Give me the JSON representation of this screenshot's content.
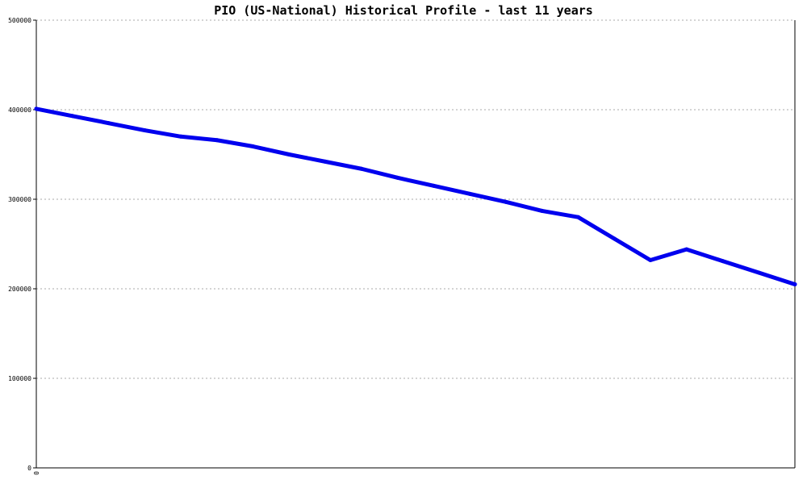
{
  "chart_data": {
    "type": "line",
    "title": "PIO (US-National) Historical Profile - last 11 years",
    "xlabel": "",
    "ylabel": "",
    "x_tick_labels": [
      "0"
    ],
    "ylim": [
      0,
      500000
    ],
    "y_ticks": [
      0,
      100000,
      200000,
      300000,
      400000,
      500000
    ],
    "y_tick_labels": [
      "0",
      "100000",
      "200000",
      "300000",
      "400000",
      "500000"
    ],
    "grid": true,
    "series": [
      {
        "color": "#0000ee",
        "x": [
          0,
          1,
          2,
          3,
          4,
          5,
          6,
          7,
          8,
          9,
          10,
          11,
          12,
          13,
          14,
          15,
          16,
          17,
          18,
          19,
          20,
          21
        ],
        "values": [
          401000,
          393000,
          385000,
          377000,
          370000,
          366000,
          359000,
          350000,
          342000,
          334000,
          324000,
          315000,
          306000,
          297000,
          287000,
          280000,
          256000,
          232000,
          244000,
          231000,
          218000,
          205000
        ]
      }
    ]
  }
}
